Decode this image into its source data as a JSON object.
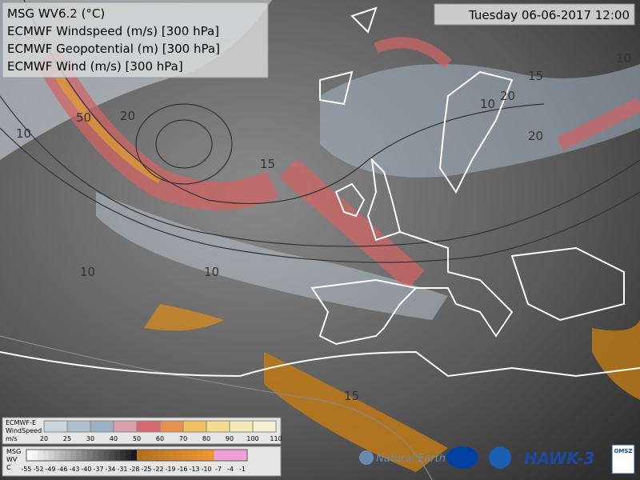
{
  "header": {
    "lines": [
      "MSG WV6.2 (°C)",
      "ECMWF Windspeed (m/s) [300 hPa]",
      "ECMWF Geopotential (m) [300 hPa]",
      "ECMWF Wind (m/s) [300 hPa]"
    ],
    "timestamp": "Tuesday 06-06-2017 12:00"
  },
  "windspeed_legend": {
    "title": [
      "ECMWF-E",
      "WindSpeed",
      "m/s"
    ],
    "ticks": [
      "20",
      "25",
      "30",
      "40",
      "50",
      "60",
      "70",
      "80",
      "90",
      "100",
      "110"
    ]
  },
  "wv_legend": {
    "title": [
      "MSG",
      "WV",
      "C"
    ],
    "ticks": [
      "-55",
      "-52",
      "-49",
      "-46",
      "-43",
      "-40",
      "-37",
      "-34",
      "-31",
      "-28",
      "-25",
      "-22",
      "-19",
      "-16",
      "-13",
      "-10",
      "-7",
      "-4",
      "-1"
    ]
  },
  "contour_labels": [
    "10",
    "10",
    "15",
    "20",
    "50",
    "20",
    "15",
    "10",
    "10",
    "20",
    "10",
    "15"
  ],
  "credits": {
    "natural_earth": "Natural Earth",
    "hawk": "HAWK-3",
    "omsz": "OMSZ"
  }
}
